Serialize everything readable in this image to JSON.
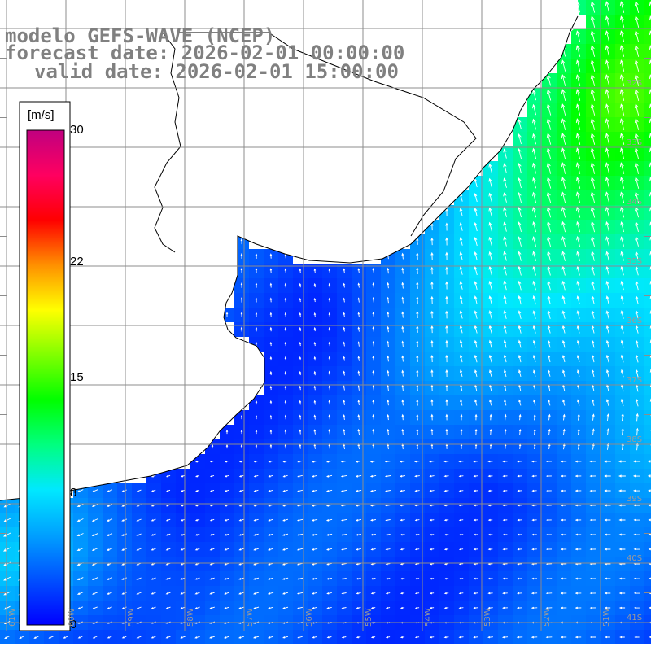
{
  "title": {
    "line1": "modelo GEFS-WAVE (NCEP)",
    "line2": "forecast date: 2026-02-01 00:00:00",
    "line3": "valid date: 2026-02-01 15:00:00"
  },
  "colorbar": {
    "unit": "[m/s]",
    "min": 0,
    "max": 30,
    "ticks": [
      {
        "label": "30",
        "value": 30
      },
      {
        "label": "22",
        "value": 22
      },
      {
        "label": "15",
        "value": 15
      },
      {
        "label": "8",
        "value": 8
      },
      {
        "label": "0",
        "value": 0
      }
    ],
    "colors": [
      "#0000ff",
      "#0050ff",
      "#00a0ff",
      "#00e8ff",
      "#00ff80",
      "#00ff00",
      "#80ff00",
      "#ffff00",
      "#ff9000",
      "#ff0000",
      "#ff0060",
      "#c00080"
    ]
  },
  "lat_labels": [
    "32S",
    "33S",
    "34S",
    "35S",
    "36S",
    "37S",
    "38S",
    "39S",
    "40S",
    "41S"
  ],
  "lon_labels": [
    "61W",
    "60W",
    "59W",
    "58W",
    "57W",
    "56W",
    "55W",
    "54W",
    "53W",
    "52W",
    "51W"
  ],
  "colors": {
    "background": "#ffffff",
    "land": "#ffffff",
    "coast": "#000000",
    "grid": "#8c8c8c",
    "arrow": "#ffffff",
    "title": "#808080"
  }
}
